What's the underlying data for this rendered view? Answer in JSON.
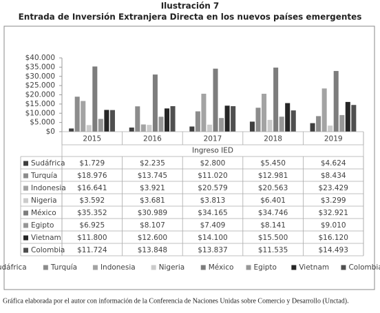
{
  "chart_data": {
    "type": "bar",
    "title": "Ilustración 7",
    "subtitle": "Entrada de Inversión Extranjera Directa en los nuevos países emergentes",
    "x_label": "Ingreso IED",
    "caption": "Gráfica elaborada por el autor con información de la Conferencia de Naciones Unidas sobre Comercio y Desarrollo (Unctad).",
    "categories": [
      "2015",
      "2016",
      "2017",
      "2018",
      "2019"
    ],
    "ylim": [
      0,
      40000
    ],
    "yticks": [
      {
        "value": 0,
        "label": "$0"
      },
      {
        "value": 5000,
        "label": "$5.000"
      },
      {
        "value": 10000,
        "label": "$10.000"
      },
      {
        "value": 15000,
        "label": "$15.000"
      },
      {
        "value": 20000,
        "label": "$20.000"
      },
      {
        "value": 25000,
        "label": "$25.000"
      },
      {
        "value": 30000,
        "label": "$30.000"
      },
      {
        "value": 35000,
        "label": "$35.000"
      },
      {
        "value": 40000,
        "label": "$40.000"
      }
    ],
    "legend": "bottom",
    "series": [
      {
        "name": "Sudáfrica",
        "color": "#3f3f3f",
        "values": [
          1729,
          2235,
          2800,
          5450,
          4624
        ],
        "value_labels": [
          "$1.729",
          "$2.235",
          "$2.800",
          "$5.450",
          "$4.624"
        ]
      },
      {
        "name": "Turquía",
        "color": "#8c8c8c",
        "values": [
          18976,
          13745,
          11020,
          12981,
          8434
        ],
        "value_labels": [
          "$18.976",
          "$13.745",
          "$11.020",
          "$12.981",
          "$8.434"
        ]
      },
      {
        "name": "Indonesia",
        "color": "#a3a3a3",
        "values": [
          16641,
          3921,
          20579,
          20563,
          23429
        ],
        "value_labels": [
          "$16.641",
          "$3.921",
          "$20.579",
          "$20.563",
          "$23.429"
        ]
      },
      {
        "name": "Nigeria",
        "color": "#cbcbcb",
        "values": [
          3592,
          3681,
          3813,
          6401,
          3299
        ],
        "value_labels": [
          "$3.592",
          "$3.681",
          "$3.813",
          "$6.401",
          "$3.299"
        ]
      },
      {
        "name": "México",
        "color": "#7d7d7d",
        "values": [
          35352,
          30989,
          34165,
          34746,
          32921
        ],
        "value_labels": [
          "$35.352",
          "$30.989",
          "$34.165",
          "$34.746",
          "$32.921"
        ]
      },
      {
        "name": "Egipto",
        "color": "#979797",
        "values": [
          6925,
          8107,
          7409,
          8141,
          9010
        ],
        "value_labels": [
          "$6.925",
          "$8.107",
          "$7.409",
          "$8.141",
          "$9.010"
        ]
      },
      {
        "name": "Vietnam",
        "color": "#262626",
        "values": [
          11800,
          12600,
          14100,
          15500,
          16120
        ],
        "value_labels": [
          "$11.800",
          "$12.600",
          "$14.100",
          "$15.500",
          "$16.120"
        ]
      },
      {
        "name": "Colombia",
        "color": "#4f4f4f",
        "values": [
          11724,
          13848,
          13837,
          11535,
          14493
        ],
        "value_labels": [
          "$11.724",
          "$13.848",
          "$13.837",
          "$11.535",
          "$14.493"
        ]
      }
    ]
  }
}
